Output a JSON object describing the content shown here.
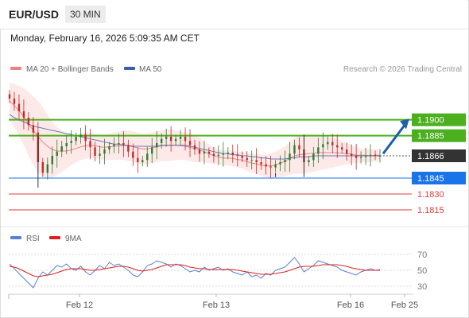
{
  "header": {
    "pair": "EUR/USD",
    "timeframe": "30 MIN",
    "datetime": "Monday, February 16, 2026 5:09:35 AM CET"
  },
  "colors": {
    "green_level": "#4caf1e",
    "blue_level": "#1a73e8",
    "red_level": "#e03b3b",
    "current_price": "#333333",
    "bollinger_fill": "#fde2e2",
    "ma20": "#f08080",
    "ma50": "#3a5fa8",
    "candle_up": "#2e7d32",
    "candle_down": "#c62828",
    "arrow": "#1f5fa8",
    "rsi": "#5b7fd6",
    "rsi_ma": "#e02020"
  },
  "chart_data": [
    {
      "type": "candlestick",
      "legend": [
        {
          "label": "MA 20 + Bollinger Bands",
          "color": "#f08080"
        },
        {
          "label": "MA 50",
          "color": "#3a5fa8"
        }
      ],
      "watermark": "Research © 2026 Trading Central",
      "ylim": [
        1.1803,
        1.1938
      ],
      "x_ticks": [
        "Feb 12",
        "Feb 13",
        "Feb 16",
        "Feb 25"
      ],
      "levels": [
        {
          "value": 1.19,
          "label": "1.1900",
          "kind": "resistance",
          "color": "#4caf1e"
        },
        {
          "value": 1.1885,
          "label": "1.1885",
          "kind": "resistance",
          "color": "#4caf1e"
        },
        {
          "value": 1.1866,
          "label": "1.1866",
          "kind": "current",
          "color": "#333333"
        },
        {
          "value": 1.1845,
          "label": "1.1845",
          "kind": "pivot",
          "color": "#1a73e8"
        },
        {
          "value": 1.183,
          "label": "1.1830",
          "kind": "support",
          "color": "#e03b3b"
        },
        {
          "value": 1.1815,
          "label": "1.1815",
          "kind": "support",
          "color": "#e03b3b"
        }
      ],
      "close_series": [
        1.192,
        1.1915,
        1.1908,
        1.1902,
        1.1895,
        1.1888,
        1.186,
        1.185,
        1.1858,
        1.1866,
        1.187,
        1.1875,
        1.1878,
        1.188,
        1.1884,
        1.1886,
        1.188,
        1.1874,
        1.1866,
        1.1868,
        1.1872,
        1.1875,
        1.1877,
        1.1878,
        1.1876,
        1.187,
        1.1864,
        1.186,
        1.1862,
        1.1868,
        1.1874,
        1.1878,
        1.1882,
        1.1884,
        1.188,
        1.1882,
        1.1884,
        1.188,
        1.1876,
        1.1872,
        1.1868,
        1.187,
        1.1868,
        1.1866,
        1.1867,
        1.1868,
        1.1869,
        1.1867,
        1.1866,
        1.1864,
        1.1862,
        1.1862,
        1.186,
        1.1858,
        1.1856,
        1.1855,
        1.1858,
        1.186,
        1.1862,
        1.1868,
        1.1876,
        1.1872,
        1.186,
        1.1862,
        1.1868,
        1.1874,
        1.1877,
        1.1879,
        1.1876,
        1.1874,
        1.1872,
        1.1868,
        1.1866,
        1.1864,
        1.1865,
        1.1866,
        1.1867,
        1.1866,
        1.1866
      ],
      "bb_upper": [
        1.1935,
        1.1934,
        1.1932,
        1.193,
        1.1926,
        1.1922,
        1.1918,
        1.1912,
        1.1905,
        1.1898,
        1.1893,
        1.189,
        1.1887,
        1.1886,
        1.1886,
        1.1887,
        1.1888,
        1.1888,
        1.1887,
        1.1886,
        1.1886,
        1.1887,
        1.1888,
        1.1889,
        1.189,
        1.189,
        1.1889,
        1.1888,
        1.1887,
        1.1887,
        1.1888,
        1.1889,
        1.189,
        1.1891,
        1.1891,
        1.189,
        1.1889,
        1.1888,
        1.1887,
        1.1885,
        1.1883,
        1.188,
        1.1877,
        1.1874,
        1.1872,
        1.1871,
        1.1871,
        1.1871,
        1.187,
        1.187,
        1.1869,
        1.1868,
        1.1868,
        1.1867,
        1.1867,
        1.1868,
        1.187,
        1.1872,
        1.1875,
        1.1879,
        1.1883,
        1.1885,
        1.1886,
        1.1886,
        1.1886,
        1.1886,
        1.1885,
        1.1884,
        1.1883,
        1.1882,
        1.188,
        1.1878,
        1.1876,
        1.1874,
        1.1873,
        1.1873,
        1.1872,
        1.1872,
        1.1872
      ],
      "bb_lower": [
        1.19,
        1.1893,
        1.1885,
        1.1876,
        1.1866,
        1.1858,
        1.185,
        1.1846,
        1.1845,
        1.1846,
        1.1848,
        1.1851,
        1.1854,
        1.1857,
        1.186,
        1.1862,
        1.1863,
        1.1864,
        1.1864,
        1.1863,
        1.1862,
        1.1862,
        1.1862,
        1.1862,
        1.1862,
        1.1861,
        1.186,
        1.1859,
        1.1858,
        1.1858,
        1.1859,
        1.186,
        1.1861,
        1.1861,
        1.1861,
        1.1862,
        1.1862,
        1.1862,
        1.1861,
        1.186,
        1.186,
        1.186,
        1.1859,
        1.1858,
        1.1858,
        1.1857,
        1.1857,
        1.1856,
        1.1855,
        1.1854,
        1.1852,
        1.185,
        1.1849,
        1.1847,
        1.1846,
        1.1845,
        1.1845,
        1.1846,
        1.1847,
        1.1848,
        1.1849,
        1.1849,
        1.1849,
        1.185,
        1.1851,
        1.1852,
        1.1853,
        1.1854,
        1.1855,
        1.1856,
        1.1857,
        1.1858,
        1.1859,
        1.1859,
        1.186,
        1.186,
        1.186,
        1.1861,
        1.1861
      ],
      "ma50": [
        1.1905,
        1.1902,
        1.19,
        1.1898,
        1.1896,
        1.1894,
        1.1893,
        1.1892,
        1.1891,
        1.189,
        1.1889,
        1.1888,
        1.1887,
        1.1886,
        1.1885,
        1.1884,
        1.1883,
        1.1882,
        1.1881,
        1.188,
        1.1879,
        1.1878,
        1.1877,
        1.1877,
        1.1876,
        1.1876,
        1.1875,
        1.1875,
        1.1875,
        1.1875,
        1.1875,
        1.1875,
        1.1876,
        1.1876,
        1.1876,
        1.1876,
        1.1876,
        1.1876,
        1.1875,
        1.1874,
        1.1873,
        1.1872,
        1.1871,
        1.187,
        1.1869,
        1.1868,
        1.1868,
        1.1867,
        1.1867,
        1.1866,
        1.1866,
        1.1865,
        1.1865,
        1.1864,
        1.1864,
        1.1863,
        1.1863,
        1.1863,
        1.1863,
        1.1864,
        1.1864,
        1.1865,
        1.1865,
        1.1865,
        1.1866,
        1.1866,
        1.1866,
        1.1866,
        1.1866,
        1.1866,
        1.1866,
        1.1866,
        1.1866,
        1.1866,
        1.1866,
        1.1866,
        1.1866,
        1.1866,
        1.1866
      ]
    },
    {
      "type": "line",
      "legend": [
        {
          "label": "RSI",
          "color": "#5b7fd6"
        },
        {
          "label": "9MA",
          "color": "#e02020"
        }
      ],
      "ylim": [
        22,
        78
      ],
      "y_ticks": [
        70,
        50,
        30
      ],
      "rsi": [
        58,
        52,
        46,
        40,
        34,
        28,
        40,
        48,
        44,
        50,
        56,
        54,
        58,
        52,
        50,
        55,
        48,
        44,
        50,
        56,
        52,
        60,
        56,
        58,
        54,
        50,
        44,
        42,
        48,
        56,
        58,
        62,
        60,
        58,
        54,
        58,
        56,
        52,
        48,
        50,
        48,
        54,
        50,
        52,
        54,
        50,
        52,
        48,
        46,
        44,
        48,
        42,
        44,
        40,
        46,
        44,
        50,
        52,
        54,
        60,
        66,
        58,
        48,
        52,
        56,
        62,
        60,
        58,
        56,
        54,
        50,
        48,
        46,
        44,
        48,
        50,
        52,
        50,
        51
      ],
      "rsi_ma": [
        55,
        54,
        52,
        49,
        46,
        43,
        42,
        43,
        44,
        45,
        47,
        49,
        51,
        52,
        52,
        52,
        51,
        50,
        50,
        51,
        52,
        53,
        54,
        55,
        55,
        54,
        52,
        50,
        49,
        50,
        51,
        53,
        55,
        57,
        57,
        57,
        57,
        56,
        54,
        53,
        52,
        52,
        51,
        51,
        51,
        51,
        51,
        51,
        50,
        49,
        48,
        47,
        46,
        45,
        45,
        45,
        46,
        47,
        48,
        50,
        52,
        54,
        55,
        55,
        55,
        56,
        57,
        57,
        57,
        57,
        56,
        55,
        53,
        52,
        51,
        50,
        50,
        50,
        50
      ]
    }
  ]
}
